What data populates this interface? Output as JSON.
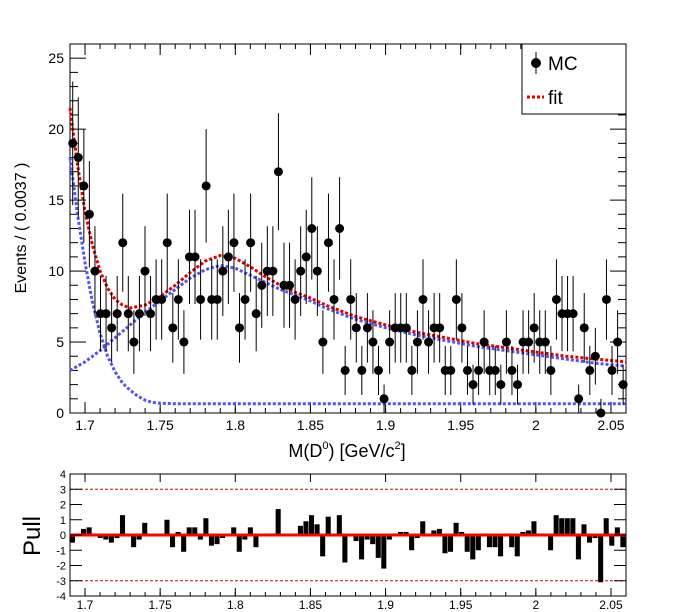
{
  "chart_data": [
    {
      "type": "scatter",
      "xlabel": "M(D",
      "xlabel_sup": "0",
      "xlabel_mid": ") [GeV/c",
      "xlabel_sup2": "2",
      "xlabel_end": "]",
      "ylabel": "Events / ( 0.0037 )",
      "xlim": [
        1.69,
        2.06
      ],
      "ylim": [
        0,
        26
      ],
      "xticks": [
        "1.7",
        "1.75",
        "1.8",
        "1.85",
        "1.9",
        "1.95",
        "2",
        "2.05"
      ],
      "xtick_values": [
        1.7,
        1.75,
        1.8,
        1.85,
        1.9,
        1.95,
        2.0,
        2.05
      ],
      "yticks": [
        "0",
        "5",
        "10",
        "15",
        "20",
        "25"
      ],
      "ytick_values": [
        0,
        5,
        10,
        15,
        20,
        25
      ],
      "legend": {
        "position": "top-right",
        "entries": [
          "MC",
          "fit"
        ]
      },
      "series": [
        {
          "name": "MC",
          "style": "points-with-errors",
          "color": "#000000",
          "x": [
            1.6918,
            1.6955,
            1.6992,
            1.7029,
            1.7066,
            1.7103,
            1.714,
            1.7177,
            1.7214,
            1.7251,
            1.7288,
            1.7325,
            1.7362,
            1.7399,
            1.7436,
            1.7473,
            1.751,
            1.7547,
            1.7584,
            1.7621,
            1.7658,
            1.7695,
            1.7732,
            1.7769,
            1.7806,
            1.7843,
            1.788,
            1.7917,
            1.7954,
            1.7991,
            1.8028,
            1.8065,
            1.8102,
            1.8139,
            1.8176,
            1.8213,
            1.825,
            1.8287,
            1.8324,
            1.8361,
            1.8398,
            1.8435,
            1.8472,
            1.8509,
            1.8546,
            1.8583,
            1.862,
            1.8657,
            1.8694,
            1.8731,
            1.8768,
            1.8805,
            1.8842,
            1.8879,
            1.8916,
            1.8953,
            1.899,
            1.9027,
            1.9064,
            1.9101,
            1.9138,
            1.9175,
            1.9212,
            1.9249,
            1.9286,
            1.9323,
            1.936,
            1.9397,
            1.9434,
            1.9471,
            1.9508,
            1.9545,
            1.9582,
            1.9619,
            1.9656,
            1.9693,
            1.973,
            1.9767,
            1.9804,
            1.9841,
            1.9878,
            1.9915,
            1.9952,
            1.9989,
            2.0026,
            2.0063,
            2.01,
            2.0137,
            2.0174,
            2.0211,
            2.0248,
            2.0285,
            2.0322,
            2.0359,
            2.0396,
            2.0433,
            2.047,
            2.0507,
            2.0544,
            2.0581
          ],
          "y": [
            19,
            18,
            16,
            14,
            10,
            7,
            7,
            6,
            7,
            12,
            7,
            5,
            7,
            10,
            7,
            8,
            8,
            12,
            6,
            8,
            5,
            11,
            11,
            8,
            16,
            8,
            8,
            10,
            11,
            12,
            6,
            8,
            12,
            7,
            9,
            10,
            10,
            17,
            9,
            9,
            8,
            10,
            11,
            13,
            10,
            5,
            12,
            8,
            13,
            3,
            8,
            6,
            3,
            6,
            5,
            3,
            1,
            5,
            6,
            6,
            6,
            3,
            5,
            8,
            5,
            6,
            6,
            3,
            3,
            8,
            6,
            3,
            2,
            3,
            5,
            3,
            3,
            2,
            5,
            3,
            2,
            5,
            5,
            6,
            5,
            5,
            3,
            8,
            7,
            7,
            7,
            1,
            6,
            3,
            4,
            0,
            8,
            3,
            5,
            2
          ],
          "yerr": [
            4.36,
            4.24,
            4.0,
            3.74,
            3.16,
            2.65,
            2.65,
            2.45,
            2.65,
            3.46,
            2.65,
            2.24,
            2.65,
            3.16,
            2.65,
            2.83,
            2.83,
            3.46,
            2.45,
            2.83,
            2.24,
            3.32,
            3.32,
            2.83,
            4.0,
            2.83,
            2.83,
            3.16,
            3.32,
            3.46,
            2.45,
            2.83,
            3.46,
            2.65,
            3.0,
            3.16,
            3.16,
            4.12,
            3.0,
            3.0,
            2.83,
            3.16,
            3.32,
            3.61,
            3.16,
            2.24,
            3.46,
            2.83,
            3.61,
            1.73,
            2.83,
            2.45,
            1.73,
            2.45,
            2.24,
            1.73,
            1.0,
            2.24,
            2.45,
            2.45,
            2.45,
            1.73,
            2.24,
            2.83,
            2.24,
            2.45,
            2.45,
            1.73,
            1.73,
            2.83,
            2.45,
            1.73,
            1.41,
            1.73,
            2.24,
            1.73,
            1.73,
            1.41,
            2.24,
            1.73,
            1.41,
            2.24,
            2.24,
            2.45,
            2.24,
            2.24,
            1.73,
            2.83,
            2.65,
            2.65,
            2.65,
            1.0,
            2.45,
            1.73,
            2.0,
            1.0,
            2.83,
            1.73,
            2.24,
            1.41
          ]
        },
        {
          "name": "fit",
          "style": "dashed-line",
          "color": "#dd0000",
          "x": [
            1.69,
            1.695,
            1.7,
            1.705,
            1.71,
            1.715,
            1.72,
            1.725,
            1.73,
            1.74,
            1.75,
            1.76,
            1.77,
            1.78,
            1.79,
            1.8,
            1.81,
            1.82,
            1.83,
            1.84,
            1.85,
            1.86,
            1.87,
            1.88,
            1.9,
            1.92,
            1.94,
            1.96,
            1.98,
            2.0,
            2.02,
            2.04,
            2.06
          ],
          "y": [
            21.5,
            17.5,
            14.2,
            11.8,
            10.0,
            8.8,
            8.0,
            7.6,
            7.4,
            7.6,
            8.2,
            9.0,
            9.9,
            10.7,
            11.1,
            10.9,
            10.3,
            9.6,
            9.0,
            8.5,
            8.1,
            7.6,
            7.2,
            6.8,
            6.2,
            5.7,
            5.3,
            4.9,
            4.6,
            4.3,
            4.0,
            3.8,
            3.6
          ]
        },
        {
          "name": "",
          "style": "dashed-line",
          "color": "#5555ee",
          "x": [
            1.69,
            1.7,
            1.71,
            1.72,
            1.73,
            1.74,
            1.75,
            1.76,
            1.77,
            1.78,
            1.79,
            1.8,
            1.81,
            1.82,
            1.83,
            1.84,
            1.85,
            1.86,
            1.87,
            1.88,
            1.9,
            1.92,
            1.94,
            1.96,
            1.98,
            2.0,
            2.02,
            2.04,
            2.06
          ],
          "y": [
            3.0,
            3.6,
            4.4,
            5.3,
            6.2,
            7.1,
            7.9,
            8.7,
            9.5,
            10.1,
            10.4,
            10.2,
            9.7,
            9.2,
            8.7,
            8.3,
            7.9,
            7.4,
            7.0,
            6.6,
            6.0,
            5.5,
            5.1,
            4.7,
            4.4,
            4.1,
            3.8,
            3.5,
            3.3
          ]
        },
        {
          "name": "",
          "style": "dashed-line",
          "color": "#5555ee",
          "x": [
            1.69,
            1.695,
            1.7,
            1.705,
            1.71,
            1.715,
            1.72,
            1.725,
            1.73,
            1.735,
            1.74,
            1.745,
            1.75,
            1.76,
            1.8,
            1.9,
            2.0,
            2.06
          ],
          "y": [
            18.0,
            14.0,
            10.6,
            7.8,
            5.6,
            4.0,
            2.9,
            2.1,
            1.6,
            1.2,
            0.9,
            0.75,
            0.68,
            0.65,
            0.65,
            0.65,
            0.65,
            0.65
          ]
        }
      ]
    },
    {
      "type": "bar",
      "ylabel": "Pull",
      "xlim": [
        1.69,
        2.06
      ],
      "ylim": [
        -4,
        4
      ],
      "xticks": [
        "1.7",
        "1.75",
        "1.8",
        "1.85",
        "1.9",
        "1.95",
        "2",
        "2.05"
      ],
      "xtick_values": [
        1.7,
        1.75,
        1.8,
        1.85,
        1.9,
        1.95,
        2.0,
        2.05
      ],
      "yticks": [
        "-4",
        "-3",
        "-2",
        "-1",
        "0",
        "1",
        "2",
        "3",
        "4"
      ],
      "ytick_values": [
        -4,
        -3,
        -2,
        -1,
        0,
        1,
        2,
        3,
        4
      ],
      "reference_lines": [
        3,
        -3
      ],
      "zero_line_color": "#ff0000",
      "reference_line_color": "#cc0000",
      "values": [
        -0.5,
        0.1,
        0.4,
        0.5,
        0.1,
        -0.2,
        -0.3,
        -0.5,
        -0.2,
        1.3,
        -0.1,
        -0.8,
        -0.3,
        0.8,
        -0.1,
        -0.1,
        0.0,
        1.0,
        -0.8,
        0.2,
        -1.1,
        0.5,
        0.5,
        -0.3,
        1.1,
        -0.7,
        -0.6,
        -0.2,
        0.0,
        0.5,
        -1.1,
        -0.3,
        0.5,
        -0.8,
        0.0,
        0.1,
        0.1,
        1.7,
        0.0,
        0.1,
        0.0,
        0.6,
        0.9,
        1.3,
        0.7,
        -1.4,
        1.2,
        -0.1,
        1.3,
        -1.8,
        0.0,
        -0.4,
        -1.6,
        -0.3,
        -0.6,
        -1.5,
        -2.2,
        -0.3,
        0.1,
        0.2,
        0.2,
        -1.0,
        -0.2,
        0.9,
        -0.1,
        0.3,
        0.4,
        -1.2,
        -1.1,
        0.8,
        0.2,
        -1.1,
        -1.6,
        -1.0,
        0.1,
        -0.8,
        -0.8,
        -1.4,
        0.1,
        -0.8,
        -1.4,
        0.2,
        0.3,
        0.9,
        0.1,
        0.1,
        -1.0,
        1.3,
        1.1,
        1.1,
        1.1,
        -1.6,
        0.7,
        -0.5,
        -0.2,
        -3.1,
        1.1,
        -0.7,
        0.5,
        -0.8
      ]
    }
  ]
}
